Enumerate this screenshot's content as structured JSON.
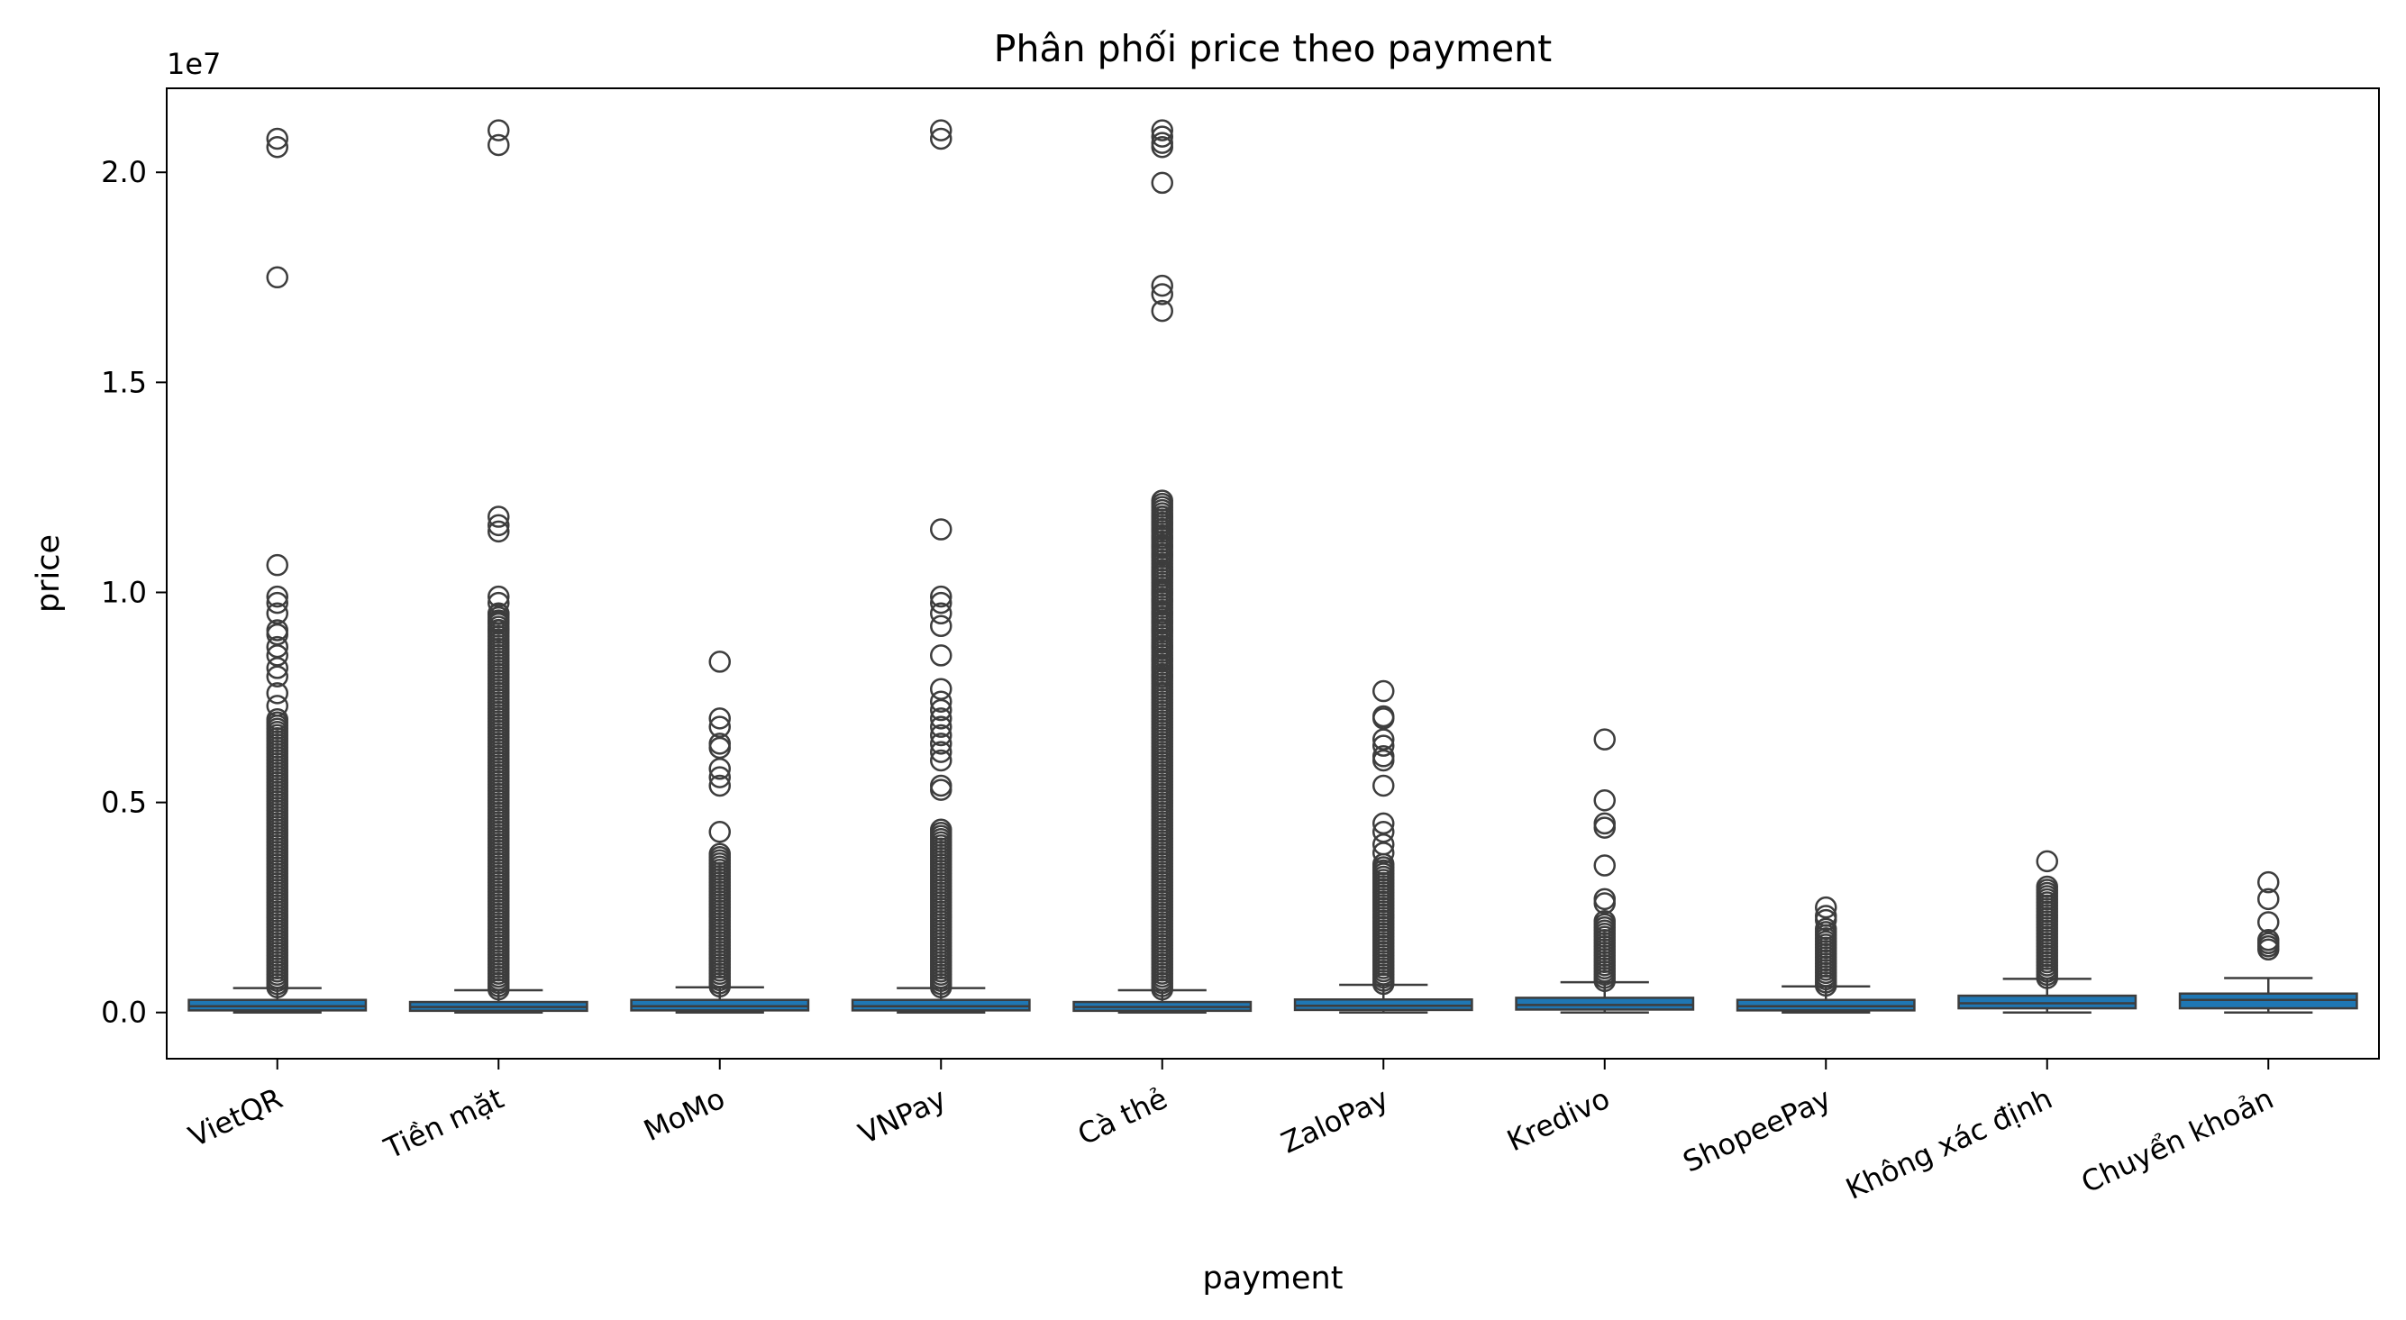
{
  "chart_data": {
    "type": "box",
    "title": "Phân phối price theo payment",
    "xlabel": "payment",
    "ylabel": "price",
    "y_offset_label": "1e7",
    "ylim": [
      -0.11,
      2.2
    ],
    "yticks": [
      0.0,
      0.5,
      1.0,
      1.5,
      2.0
    ],
    "ytick_labels": [
      "0.0",
      "0.5",
      "1.0",
      "1.5",
      "2.0"
    ],
    "box_color": "#1f77b4",
    "line_color": "#3d3d3d",
    "categories": [
      "VietQR",
      "Tiền mặt",
      "MoMo",
      "VNPay",
      "Cà thẻ",
      "ZaloPay",
      "Kredivo",
      "ShopeePay",
      "Không xác định",
      "Chuyển khoản"
    ],
    "boxes": [
      {
        "whislo": 0.0,
        "q1": 0.005,
        "med": 0.015,
        "q3": 0.03,
        "whishi": 0.058,
        "fliers": [
          0.06,
          0.7,
          0.9,
          2.06,
          2.08,
          1.75,
          1.065,
          0.99,
          0.975,
          0.95,
          0.91,
          0.87,
          0.85,
          0.82,
          0.8,
          0.76,
          0.73
        ]
      },
      {
        "whislo": 0.0,
        "q1": 0.004,
        "med": 0.013,
        "q3": 0.025,
        "whishi": 0.053,
        "fliers": [
          0.055,
          0.95,
          2.1,
          2.065,
          1.18,
          1.16,
          1.145,
          0.99,
          0.975,
          0.95,
          0.93,
          0.91
        ]
      },
      {
        "whislo": 0.0,
        "q1": 0.005,
        "med": 0.015,
        "q3": 0.03,
        "whishi": 0.06,
        "fliers": [
          0.062,
          0.38,
          0.835,
          0.7,
          0.68,
          0.64,
          0.63,
          0.58,
          0.56,
          0.54,
          0.43
        ]
      },
      {
        "whislo": 0.0,
        "q1": 0.005,
        "med": 0.015,
        "q3": 0.03,
        "whishi": 0.058,
        "fliers": [
          0.06,
          0.44,
          2.1,
          2.08,
          1.15,
          0.99,
          0.975,
          0.95,
          0.92,
          0.85,
          0.77,
          0.74,
          0.72,
          0.7,
          0.68,
          0.66,
          0.64,
          0.62,
          0.6,
          0.54,
          0.53
        ]
      },
      {
        "whislo": 0.0,
        "q1": 0.004,
        "med": 0.013,
        "q3": 0.025,
        "whishi": 0.053,
        "fliers": [
          0.055,
          1.22,
          2.1,
          2.085,
          2.07,
          2.06,
          1.975,
          1.73,
          1.71,
          1.67,
          1.18,
          1.165,
          1.15,
          1.13,
          1.11,
          1.09,
          1.05,
          1.04,
          1.0,
          0.98,
          0.95,
          0.93,
          0.91,
          0.87,
          0.84,
          0.82,
          0.8
        ]
      },
      {
        "whislo": 0.0,
        "q1": 0.006,
        "med": 0.016,
        "q3": 0.031,
        "whishi": 0.066,
        "fliers": [
          0.068,
          0.36,
          0.765,
          0.705,
          0.7,
          0.65,
          0.635,
          0.61,
          0.6,
          0.54,
          0.45,
          0.43,
          0.4,
          0.38
        ]
      },
      {
        "whislo": 0.0,
        "q1": 0.007,
        "med": 0.018,
        "q3": 0.035,
        "whishi": 0.072,
        "fliers": [
          0.075,
          0.22,
          0.65,
          0.505,
          0.45,
          0.44,
          0.35,
          0.27,
          0.26
        ]
      },
      {
        "whislo": 0.0,
        "q1": 0.005,
        "med": 0.015,
        "q3": 0.03,
        "whishi": 0.062,
        "fliers": [
          0.064,
          0.2,
          0.25,
          0.23,
          0.22
        ]
      },
      {
        "whislo": 0.0,
        "q1": 0.01,
        "med": 0.022,
        "q3": 0.04,
        "whishi": 0.08,
        "fliers": [
          0.082,
          0.3,
          0.36
        ]
      },
      {
        "whislo": 0.0,
        "q1": 0.01,
        "med": 0.03,
        "q3": 0.045,
        "whishi": 0.082,
        "fliers": [
          0.15,
          0.18,
          0.215,
          0.27,
          0.31
        ]
      }
    ]
  }
}
